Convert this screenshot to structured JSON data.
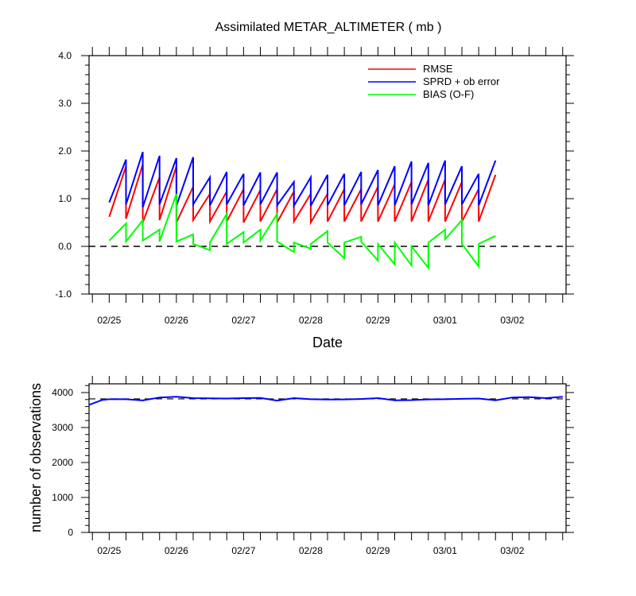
{
  "chart_data": [
    {
      "type": "line",
      "title": "Assimilated METAR_ALTIMETER ( mb )",
      "xlabel": "Date",
      "ylabel": "",
      "ylim": [
        -1.0,
        4.0
      ],
      "yticks": [
        "-1.0",
        "0.0",
        "1.0",
        "2.0",
        "3.0",
        "4.0"
      ],
      "xlim": [
        -0.3,
        6.8
      ],
      "xtick_labels": [
        "02/25",
        "02/26",
        "02/27",
        "02/28",
        "02/29",
        "03/01",
        "03/02"
      ],
      "reference_line": 0.0,
      "legend_position": "top-right",
      "cycles": [
        {
          "t": 0.0,
          "rmse": [
            0.62,
            1.68
          ],
          "sprd": [
            0.92,
            1.82
          ],
          "bias": [
            0.12,
            0.48
          ]
        },
        {
          "t": 0.25,
          "rmse": [
            0.58,
            1.72
          ],
          "sprd": [
            0.88,
            1.98
          ],
          "bias": [
            0.1,
            0.55
          ]
        },
        {
          "t": 0.5,
          "rmse": [
            0.5,
            1.45
          ],
          "sprd": [
            0.82,
            1.9
          ],
          "bias": [
            0.12,
            0.35
          ]
        },
        {
          "t": 0.75,
          "rmse": [
            0.55,
            1.68
          ],
          "sprd": [
            0.88,
            1.85
          ],
          "bias": [
            0.1,
            1.1
          ]
        },
        {
          "t": 1.0,
          "rmse": [
            0.5,
            1.25
          ],
          "sprd": [
            0.85,
            1.87
          ],
          "bias": [
            0.1,
            0.25
          ]
        },
        {
          "t": 1.25,
          "rmse": [
            0.55,
            1.1
          ],
          "sprd": [
            0.88,
            1.45
          ],
          "bias": [
            0.05,
            -0.08
          ]
        },
        {
          "t": 1.5,
          "rmse": [
            0.52,
            1.15
          ],
          "sprd": [
            0.86,
            1.56
          ],
          "bias": [
            0.08,
            0.68
          ]
        },
        {
          "t": 1.75,
          "rmse": [
            0.52,
            1.2
          ],
          "sprd": [
            0.88,
            1.52
          ],
          "bias": [
            0.05,
            0.3
          ]
        },
        {
          "t": 2.0,
          "rmse": [
            0.5,
            1.18
          ],
          "sprd": [
            0.86,
            1.55
          ],
          "bias": [
            0.08,
            0.35
          ]
        },
        {
          "t": 2.25,
          "rmse": [
            0.52,
            1.2
          ],
          "sprd": [
            0.88,
            1.55
          ],
          "bias": [
            0.12,
            0.68
          ]
        },
        {
          "t": 2.5,
          "rmse": [
            0.5,
            1.15
          ],
          "sprd": [
            0.86,
            1.35
          ],
          "bias": [
            0.1,
            -0.12
          ]
        },
        {
          "t": 2.75,
          "rmse": [
            0.52,
            1.1
          ],
          "sprd": [
            0.85,
            1.45
          ],
          "bias": [
            0.08,
            -0.05
          ]
        },
        {
          "t": 3.0,
          "rmse": [
            0.5,
            1.1
          ],
          "sprd": [
            0.85,
            1.5
          ],
          "bias": [
            0.05,
            0.32
          ]
        },
        {
          "t": 3.25,
          "rmse": [
            0.52,
            1.2
          ],
          "sprd": [
            0.86,
            1.52
          ],
          "bias": [
            0.08,
            -0.25
          ]
        },
        {
          "t": 3.5,
          "rmse": [
            0.52,
            1.2
          ],
          "sprd": [
            0.86,
            1.56
          ],
          "bias": [
            0.08,
            0.2
          ]
        },
        {
          "t": 3.75,
          "rmse": [
            0.52,
            1.25
          ],
          "sprd": [
            0.88,
            1.6
          ],
          "bias": [
            0.1,
            -0.3
          ]
        },
        {
          "t": 4.0,
          "rmse": [
            0.52,
            1.3
          ],
          "sprd": [
            0.86,
            1.68
          ],
          "bias": [
            0.05,
            -0.38
          ]
        },
        {
          "t": 4.25,
          "rmse": [
            0.52,
            1.35
          ],
          "sprd": [
            0.86,
            1.78
          ],
          "bias": [
            0.08,
            -0.4
          ]
        },
        {
          "t": 4.5,
          "rmse": [
            0.52,
            1.4
          ],
          "sprd": [
            0.88,
            1.75
          ],
          "bias": [
            0.0,
            -0.45
          ]
        },
        {
          "t": 4.75,
          "rmse": [
            0.52,
            1.4
          ],
          "sprd": [
            0.86,
            1.8
          ],
          "bias": [
            0.08,
            0.35
          ]
        },
        {
          "t": 5.0,
          "rmse": [
            0.52,
            1.35
          ],
          "sprd": [
            0.88,
            1.68
          ],
          "bias": [
            0.15,
            0.55
          ]
        },
        {
          "t": 5.25,
          "rmse": [
            0.52,
            1.2
          ],
          "sprd": [
            0.88,
            1.52
          ],
          "bias": [
            0.05,
            -0.42
          ]
        },
        {
          "t": 5.5,
          "rmse": [
            0.52,
            1.5
          ],
          "sprd": [
            0.86,
            1.8
          ],
          "bias": [
            0.05,
            0.22
          ]
        }
      ],
      "series": [
        {
          "name": "RMSE",
          "color": "#ff0000"
        },
        {
          "name": "SPRD + ob error",
          "color": "#0000ff"
        },
        {
          "name": "BIAS (O-F)",
          "color": "#00ff00"
        }
      ]
    },
    {
      "type": "line",
      "title": "",
      "xlabel": "",
      "ylabel": "number of observations",
      "ylim": [
        0,
        4250
      ],
      "yticks": [
        "0",
        "1000",
        "2000",
        "3000",
        "4000"
      ],
      "xlim": [
        -0.3,
        6.8
      ],
      "xtick_labels": [
        "02/25",
        "02/26",
        "02/27",
        "02/28",
        "02/29",
        "03/01",
        "03/02"
      ],
      "reference_line": 3820,
      "series": [
        {
          "name": "observations",
          "color": "#0000ff",
          "x": [
            -0.3,
            -0.1,
            0.0,
            0.25,
            0.5,
            0.75,
            1.0,
            1.25,
            1.5,
            1.75,
            2.0,
            2.25,
            2.5,
            2.75,
            3.0,
            3.25,
            3.5,
            3.75,
            4.0,
            4.25,
            4.5,
            4.75,
            5.0,
            5.25,
            5.5,
            5.75,
            6.0,
            6.25,
            6.5,
            6.75
          ],
          "y": [
            3650,
            3790,
            3810,
            3810,
            3775,
            3860,
            3880,
            3840,
            3835,
            3830,
            3840,
            3845,
            3770,
            3840,
            3810,
            3800,
            3805,
            3815,
            3840,
            3780,
            3785,
            3805,
            3810,
            3820,
            3830,
            3780,
            3860,
            3870,
            3840,
            3880
          ]
        }
      ]
    }
  ]
}
